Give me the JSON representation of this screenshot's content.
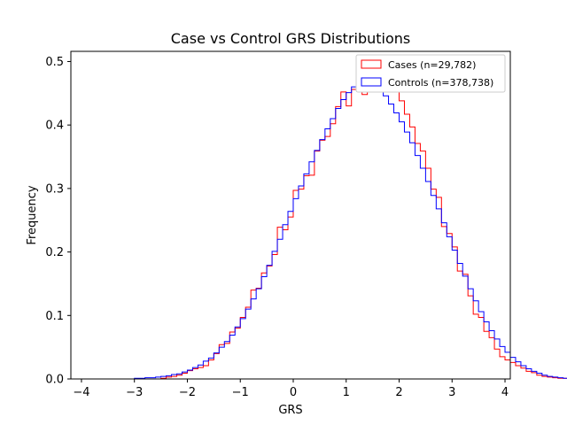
{
  "chart_data": {
    "type": "histogram",
    "title": "Case vs Control GRS Distributions",
    "xlabel": "GRS",
    "ylabel": "Frequency",
    "xlim": [
      -4.2,
      4.1
    ],
    "ylim": [
      0.0,
      0.516
    ],
    "xticks": [
      -4,
      -3,
      -2,
      -1,
      0,
      1,
      2,
      3,
      4
    ],
    "xtick_labels": [
      "−4",
      "−3",
      "−2",
      "−1",
      "0",
      "1",
      "2",
      "3",
      "4"
    ],
    "yticks": [
      0.0,
      0.1,
      0.2,
      0.3,
      0.4,
      0.5
    ],
    "ytick_labels": [
      "0.0",
      "0.1",
      "0.2",
      "0.3",
      "0.4",
      "0.5"
    ],
    "grid": false,
    "legend_position": "upper right",
    "bin_width": 0.1,
    "series": [
      {
        "name": "Cases (n=29,782)",
        "color": "#ff0000",
        "x_start": -2.5,
        "values": [
          0.001,
          0.003,
          0.004,
          0.006,
          0.009,
          0.013,
          0.016,
          0.018,
          0.021,
          0.03,
          0.04,
          0.054,
          0.056,
          0.074,
          0.08,
          0.097,
          0.113,
          0.14,
          0.143,
          0.167,
          0.178,
          0.196,
          0.239,
          0.235,
          0.255,
          0.297,
          0.299,
          0.32,
          0.321,
          0.359,
          0.376,
          0.382,
          0.402,
          0.429,
          0.452,
          0.43,
          0.456,
          0.459,
          0.448,
          0.462,
          0.466,
          0.459,
          0.49,
          0.462,
          0.454,
          0.438,
          0.417,
          0.397,
          0.371,
          0.359,
          0.332,
          0.299,
          0.286,
          0.24,
          0.229,
          0.208,
          0.17,
          0.165,
          0.131,
          0.102,
          0.097,
          0.075,
          0.065,
          0.047,
          0.035,
          0.03,
          0.026,
          0.021,
          0.017,
          0.012,
          0.01,
          0.006,
          0.004,
          0.003,
          0.002,
          0.001,
          0.001,
          0.001,
          0.001,
          0.0
        ]
      },
      {
        "name": "Controls (n=378,738)",
        "color": "#0000ff",
        "x_start": -3.8,
        "values": [
          0.0,
          0.0,
          0.0,
          0.0,
          0.0,
          0.0,
          0.0,
          0.0,
          0.001,
          0.001,
          0.002,
          0.002,
          0.003,
          0.004,
          0.005,
          0.007,
          0.008,
          0.011,
          0.014,
          0.018,
          0.022,
          0.028,
          0.033,
          0.041,
          0.05,
          0.059,
          0.069,
          0.082,
          0.095,
          0.11,
          0.126,
          0.142,
          0.161,
          0.179,
          0.201,
          0.22,
          0.243,
          0.264,
          0.284,
          0.304,
          0.323,
          0.342,
          0.36,
          0.377,
          0.394,
          0.41,
          0.426,
          0.44,
          0.451,
          0.46,
          0.467,
          0.467,
          0.464,
          0.46,
          0.456,
          0.446,
          0.433,
          0.419,
          0.405,
          0.389,
          0.372,
          0.352,
          0.332,
          0.311,
          0.289,
          0.268,
          0.246,
          0.224,
          0.203,
          0.182,
          0.162,
          0.142,
          0.123,
          0.106,
          0.09,
          0.076,
          0.063,
          0.051,
          0.042,
          0.034,
          0.027,
          0.021,
          0.016,
          0.012,
          0.009,
          0.006,
          0.004,
          0.003,
          0.002,
          0.001,
          0.001,
          0.0,
          0.0,
          0.0
        ]
      }
    ]
  }
}
